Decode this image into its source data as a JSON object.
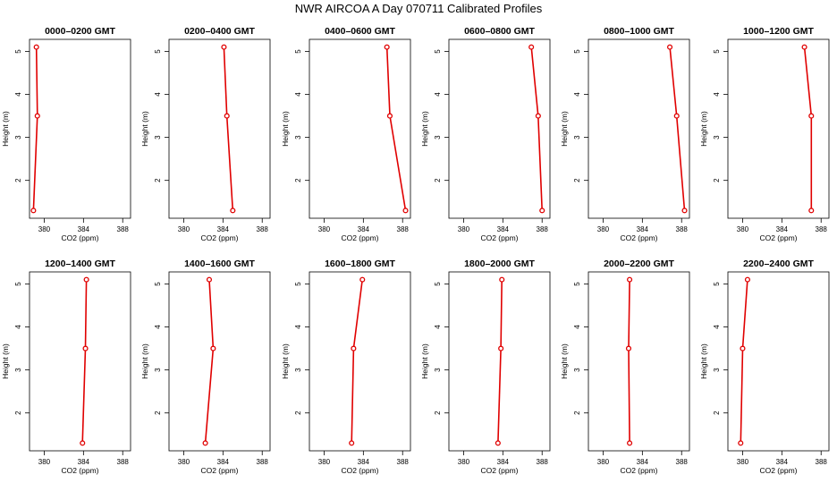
{
  "title": "NWR AIRCOA A  Day 070711  Calibrated Profiles",
  "chart_data": {
    "type": "line",
    "xlabel": "CO2 (ppm)",
    "ylabel": "Height (m)",
    "xlim": [
      378.5,
      388.8
    ],
    "ylim": [
      1.12,
      5.28
    ],
    "xticks": [
      380,
      384,
      388
    ],
    "xtick_labels": [
      "380",
      "384",
      "388"
    ],
    "yticks": [
      2,
      3,
      4,
      5
    ],
    "ytick_labels": [
      "2",
      "3",
      "4",
      "5"
    ],
    "line_color": "#e00000",
    "panels": [
      {
        "title": "0000–0200 GMT",
        "x": [
          379.2,
          379.3,
          378.9
        ],
        "y": [
          5.1,
          3.5,
          1.3
        ]
      },
      {
        "title": "0200–0400 GMT",
        "x": [
          384.1,
          384.4,
          385.0
        ],
        "y": [
          5.1,
          3.5,
          1.3
        ]
      },
      {
        "title": "0400–0600 GMT",
        "x": [
          386.4,
          386.7,
          388.3
        ],
        "y": [
          5.1,
          3.5,
          1.3
        ]
      },
      {
        "title": "0600–0800 GMT",
        "x": [
          386.9,
          387.6,
          388.0
        ],
        "y": [
          5.1,
          3.5,
          1.3
        ]
      },
      {
        "title": "0800–1000 GMT",
        "x": [
          386.8,
          387.5,
          388.3
        ],
        "y": [
          5.1,
          3.5,
          1.3
        ]
      },
      {
        "title": "1000–1200 GMT",
        "x": [
          386.3,
          387.0,
          387.0
        ],
        "y": [
          5.1,
          3.5,
          1.3
        ]
      },
      {
        "title": "1200–1400 GMT",
        "x": [
          384.3,
          384.2,
          383.9
        ],
        "y": [
          5.1,
          3.5,
          1.3
        ]
      },
      {
        "title": "1400–1600 GMT",
        "x": [
          382.6,
          383.0,
          382.2
        ],
        "y": [
          5.1,
          3.5,
          1.3
        ]
      },
      {
        "title": "1600–1800 GMT",
        "x": [
          383.9,
          383.0,
          382.8
        ],
        "y": [
          5.1,
          3.5,
          1.3
        ]
      },
      {
        "title": "1800–2000 GMT",
        "x": [
          383.9,
          383.8,
          383.5
        ],
        "y": [
          5.1,
          3.5,
          1.3
        ]
      },
      {
        "title": "2000–2200 GMT",
        "x": [
          382.7,
          382.6,
          382.7
        ],
        "y": [
          5.1,
          3.5,
          1.3
        ]
      },
      {
        "title": "2200–2400 GMT",
        "x": [
          380.5,
          380.0,
          379.8
        ],
        "y": [
          5.1,
          3.5,
          1.3
        ]
      }
    ]
  }
}
